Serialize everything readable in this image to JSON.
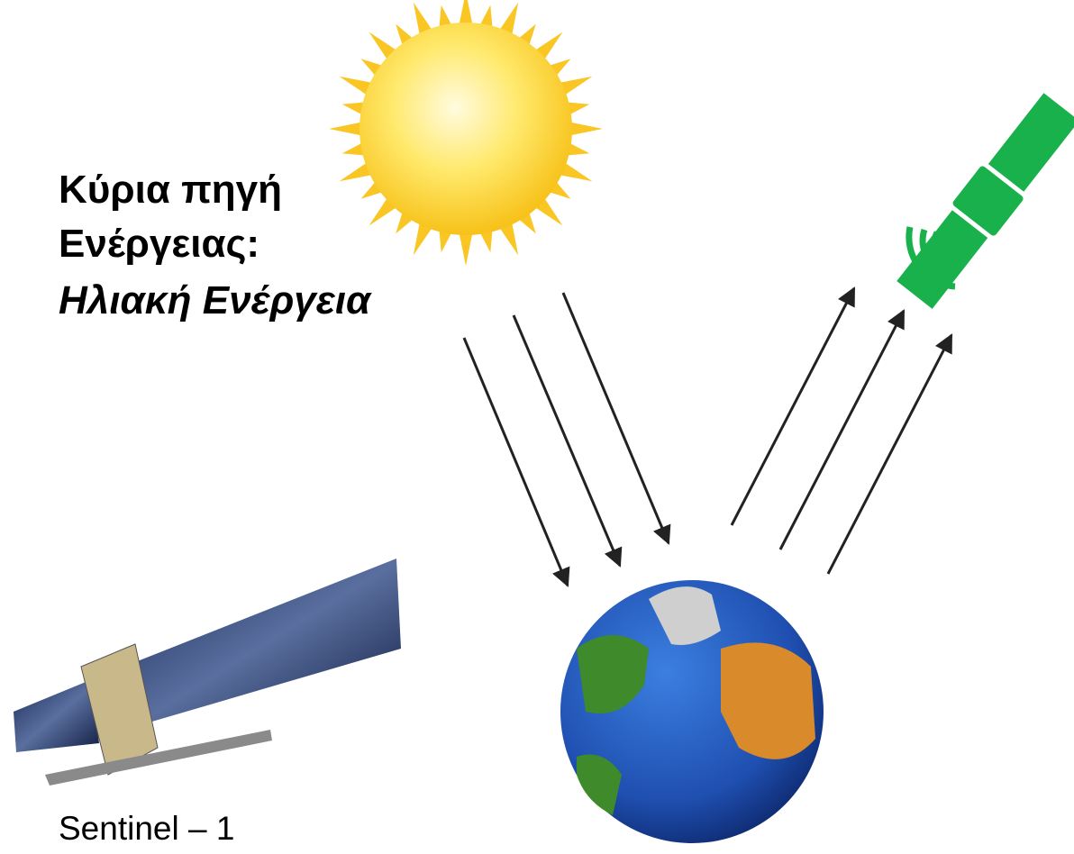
{
  "heading": {
    "line1": "Κύρια πηγή",
    "line2": "Ενέργειας:",
    "line3": "Ηλιακή Ενέργεια"
  },
  "caption": "Sentinel – 1"
}
